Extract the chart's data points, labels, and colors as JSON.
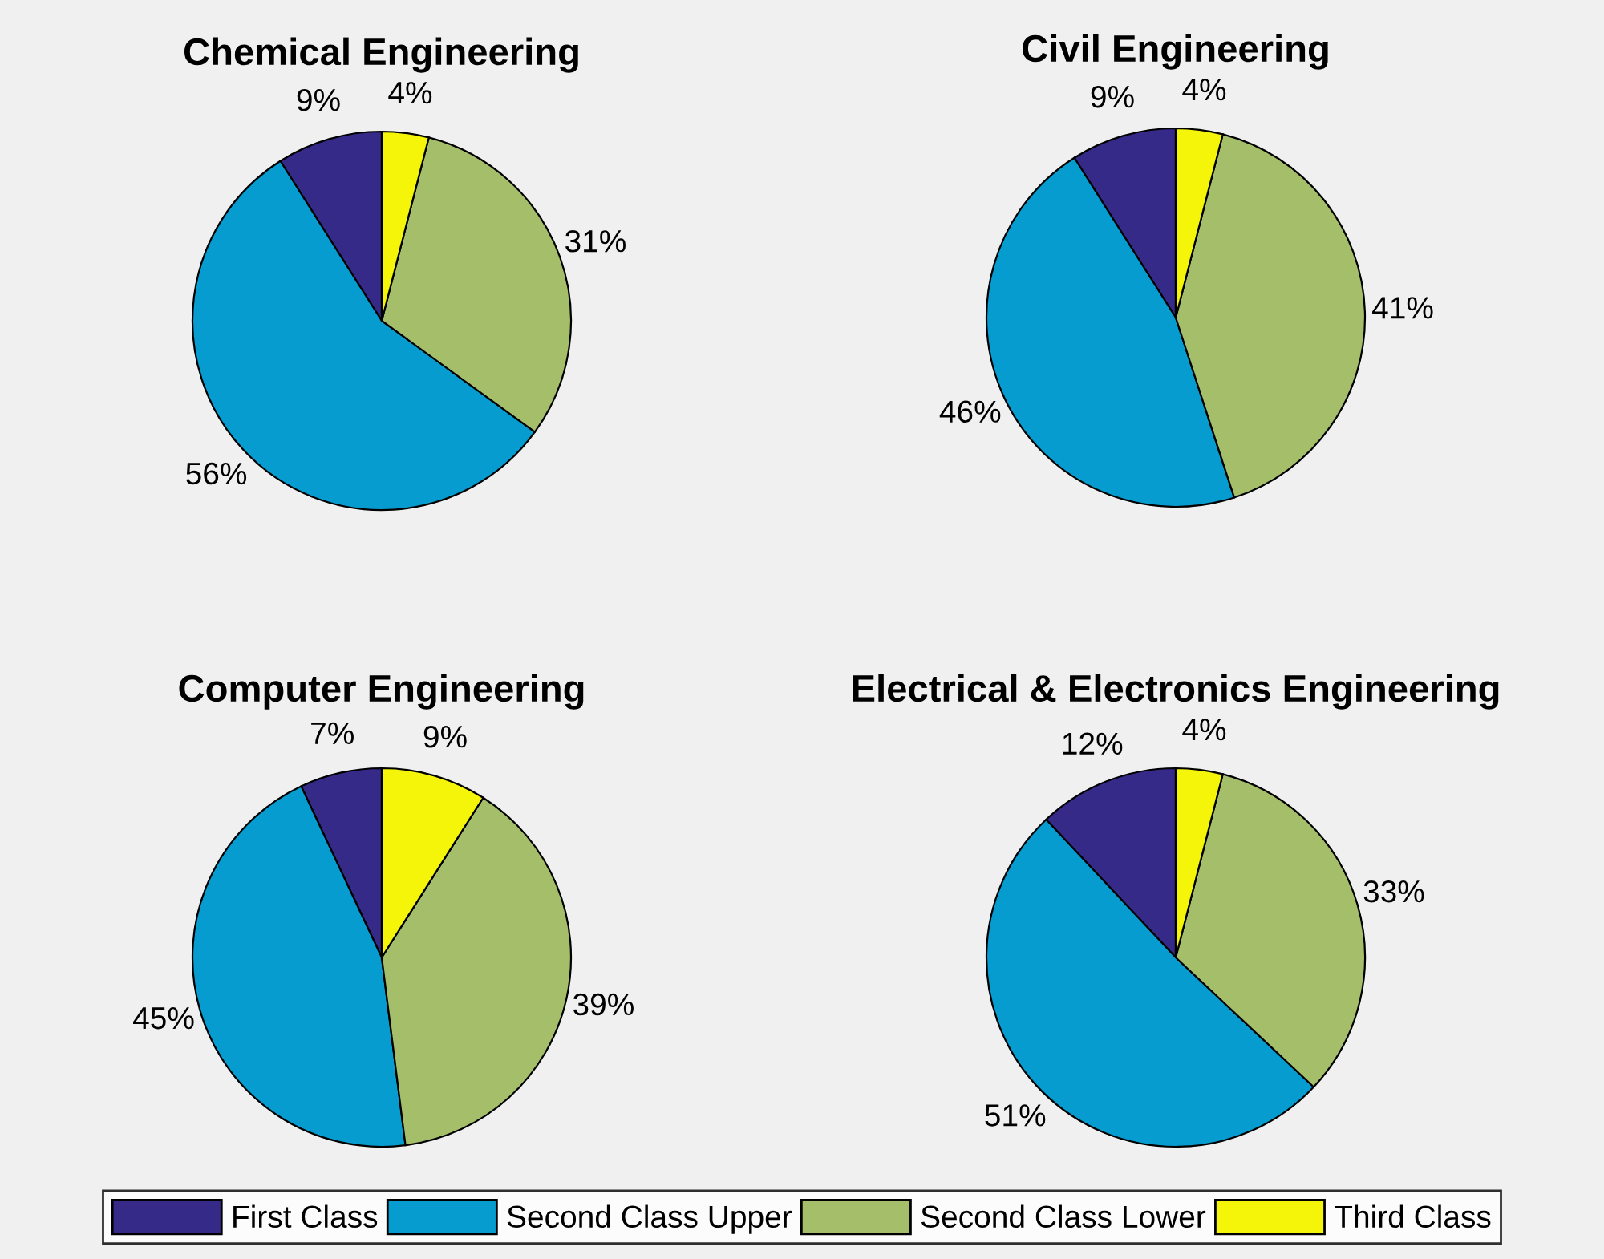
{
  "chart_data": [
    {
      "type": "pie",
      "title": "Chemical Engineering",
      "categories": [
        "First Class",
        "Second Class Upper",
        "Second Class Lower",
        "Third Class"
      ],
      "values": [
        9,
        56,
        31,
        4
      ],
      "value_labels": [
        "9%",
        "56%",
        "31%",
        "4%"
      ],
      "colors": [
        "#352a87",
        "#069ccf",
        "#a5be6a",
        "#f5f50a"
      ],
      "legend": "bottom"
    },
    {
      "type": "pie",
      "title": "Civil Engineering",
      "values": [
        9,
        46,
        41,
        4
      ],
      "value_labels": [
        "9%",
        "46%",
        "41%",
        "4%"
      ],
      "colors": [
        "#352a87",
        "#069ccf",
        "#a5be6a",
        "#f5f50a"
      ]
    },
    {
      "type": "pie",
      "title": "Computer Engineering",
      "values": [
        7,
        45,
        39,
        9
      ],
      "value_labels": [
        "7%",
        "45%",
        "39%",
        "9%"
      ],
      "colors": [
        "#352a87",
        "#069ccf",
        "#a5be6a",
        "#f5f50a"
      ]
    },
    {
      "type": "pie",
      "title": "Electrical & Electronics Engineering",
      "values": [
        12,
        51,
        33,
        4
      ],
      "value_labels": [
        "12%",
        "51%",
        "33%",
        "4%"
      ],
      "colors": [
        "#352a87",
        "#069ccf",
        "#a5be6a",
        "#f5f50a"
      ]
    }
  ]
}
